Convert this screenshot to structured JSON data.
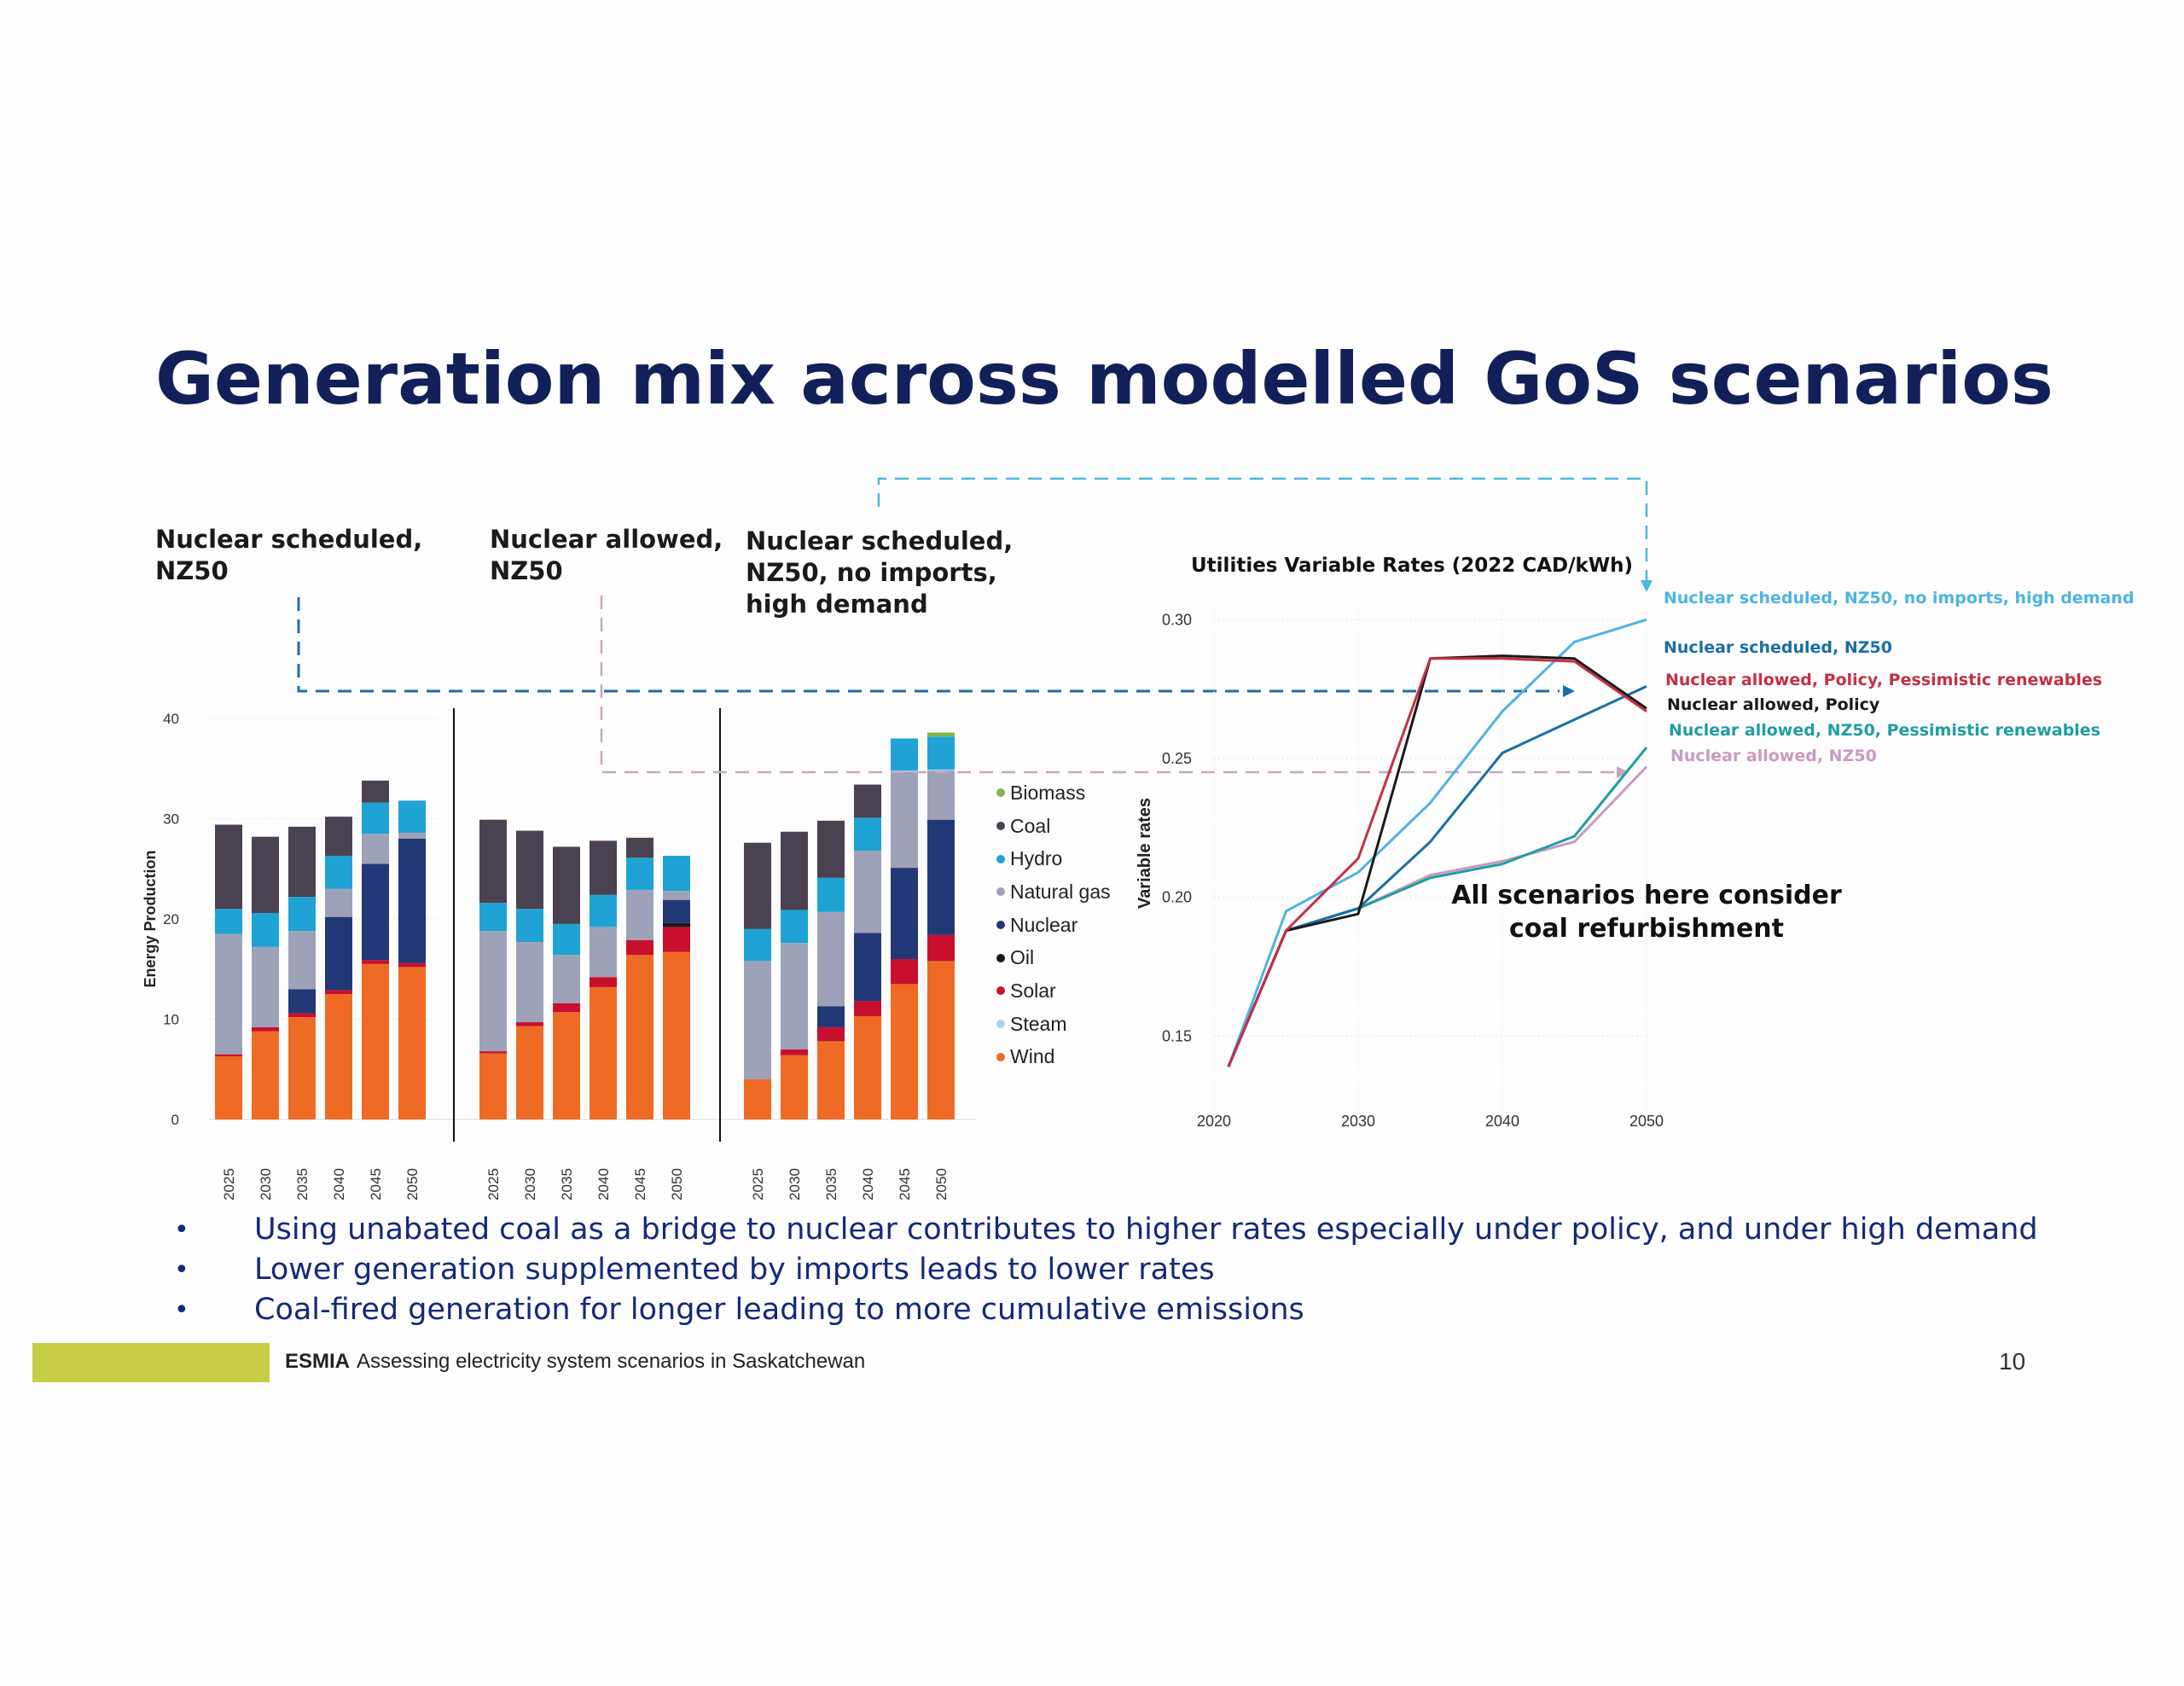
{
  "title": "Generation mix across modelled GoS scenarios",
  "scenario_labels": [
    {
      "text": "Nuclear scheduled,\nNZ50",
      "color": "#1b6f98"
    },
    {
      "text": "Nuclear allowed,\nNZ50",
      "color": "#b386a6"
    },
    {
      "text": "Nuclear scheduled,\nNZ50, no imports,\nhigh demand",
      "color": "#5ab9dd"
    }
  ],
  "legend": [
    {
      "name": "Biomass",
      "color": "#7fb74a"
    },
    {
      "name": "Coal",
      "color": "#4a4250"
    },
    {
      "name": "Hydro",
      "color": "#1fa3d4"
    },
    {
      "name": "Natural gas",
      "color": "#9ea2b8"
    },
    {
      "name": "Nuclear",
      "color": "#223876"
    },
    {
      "name": "Oil",
      "color": "#1a1a1a"
    },
    {
      "name": "Solar",
      "color": "#c8102e"
    },
    {
      "name": "Steam",
      "color": "#a9d3ee"
    },
    {
      "name": "Wind",
      "color": "#ef6b25"
    }
  ],
  "chart_data": [
    {
      "type": "bar",
      "stacked": true,
      "ylabel": "Energy Production",
      "ylim": [
        0,
        40
      ],
      "yticks": [
        "0",
        "10",
        "20",
        "30",
        "40"
      ],
      "panels": [
        {
          "categories": [
            "2025",
            "2030",
            "2035",
            "2040",
            "2045",
            "2050"
          ],
          "series": [
            {
              "name": "Wind",
              "values": [
                6.3,
                8.8,
                10.2,
                12.5,
                15.5,
                15.2
              ]
            },
            {
              "name": "Solar",
              "values": [
                0.2,
                0.4,
                0.4,
                0.4,
                0.4,
                0.4
              ]
            },
            {
              "name": "Nuclear",
              "values": [
                0,
                0,
                2.4,
                7.3,
                9.6,
                12.4
              ]
            },
            {
              "name": "Natural gas",
              "values": [
                12,
                8,
                5.8,
                2.8,
                3.0,
                0.6
              ]
            },
            {
              "name": "Steam",
              "values": [
                0,
                0,
                0,
                0,
                0,
                0
              ]
            },
            {
              "name": "Hydro",
              "values": [
                2.5,
                3.4,
                3.4,
                3.3,
                3.1,
                3.2
              ]
            },
            {
              "name": "Coal",
              "values": [
                8.4,
                7.6,
                7.0,
                3.9,
                2.2,
                0
              ]
            },
            {
              "name": "Biomass",
              "values": [
                0,
                0,
                0,
                0,
                0,
                0
              ]
            }
          ]
        },
        {
          "categories": [
            "2025",
            "2030",
            "2035",
            "2040",
            "2045",
            "2050"
          ],
          "series": [
            {
              "name": "Wind",
              "values": [
                6.6,
                9.3,
                10.7,
                13.2,
                16.4,
                16.7
              ]
            },
            {
              "name": "Solar",
              "values": [
                0.2,
                0.4,
                0.9,
                1.0,
                1.5,
                2.5
              ]
            },
            {
              "name": "Nuclear",
              "values": [
                0,
                0,
                0,
                0,
                0,
                2.3
              ]
            },
            {
              "name": "Natural gas",
              "values": [
                12,
                8,
                4.8,
                5.0,
                5.0,
                0.9
              ]
            },
            {
              "name": "Steam",
              "values": [
                0,
                0,
                0,
                0,
                0,
                0
              ]
            },
            {
              "name": "Hydro",
              "values": [
                2.8,
                3.3,
                3.1,
                3.2,
                3.2,
                3.5
              ]
            },
            {
              "name": "Coal",
              "values": [
                8.3,
                7.8,
                7.7,
                5.4,
                2.0,
                0
              ]
            },
            {
              "name": "Oil",
              "values": [
                0,
                0,
                0,
                0,
                0,
                0.4
              ]
            }
          ]
        },
        {
          "categories": [
            "2025",
            "2030",
            "2035",
            "2040",
            "2045",
            "2050"
          ],
          "series": [
            {
              "name": "Wind",
              "values": [
                4.0,
                6.4,
                7.8,
                10.3,
                13.5,
                15.8
              ]
            },
            {
              "name": "Solar",
              "values": [
                0,
                0.6,
                1.4,
                1.5,
                2.5,
                2.6
              ]
            },
            {
              "name": "Nuclear",
              "values": [
                0,
                0,
                2.1,
                6.8,
                9.1,
                11.5
              ]
            },
            {
              "name": "Natural gas",
              "values": [
                11.8,
                10.6,
                9.4,
                8.2,
                9.6,
                4.9
              ]
            },
            {
              "name": "Steam",
              "values": [
                0,
                0,
                0,
                0,
                0.1,
                0.1
              ]
            },
            {
              "name": "Hydro",
              "values": [
                3.2,
                3.3,
                3.4,
                3.3,
                3.2,
                3.3
              ]
            },
            {
              "name": "Coal",
              "values": [
                8.6,
                7.8,
                5.7,
                3.3,
                0,
                0
              ]
            },
            {
              "name": "Biomass",
              "values": [
                0,
                0,
                0,
                0,
                0,
                0.4
              ]
            }
          ]
        }
      ]
    },
    {
      "type": "line",
      "title": "Utilities Variable Rates (2022 CAD/kWh)",
      "ylabel": "Variable rates",
      "x": [
        2021,
        2025,
        2030,
        2035,
        2040,
        2045,
        2050
      ],
      "xticks": [
        "2020",
        "2030",
        "2040",
        "2050"
      ],
      "yticks": [
        "0.15",
        "0.20",
        "0.25",
        "0.30"
      ],
      "ylim": [
        0.12,
        0.305
      ],
      "xlim": [
        2020,
        2050
      ],
      "series": [
        {
          "name": "Nuclear scheduled, NZ50, no imports, high demand",
          "color": "#4db4e2",
          "values": [
            0.139,
            0.195,
            0.209,
            0.234,
            0.267,
            0.292,
            0.3
          ]
        },
        {
          "name": "Nuclear scheduled, NZ50",
          "color": "#1a6fa3",
          "values": [
            0.139,
            0.188,
            0.196,
            0.22,
            0.252,
            0.264,
            0.276
          ]
        },
        {
          "name": "Nuclear allowed, Policy, Pessimistic renewables",
          "color": "#c62f45",
          "values": [
            0.139,
            0.188,
            0.214,
            0.286,
            0.286,
            0.285,
            0.267
          ]
        },
        {
          "name": "Nuclear allowed, Policy",
          "color": "#1a1a1a",
          "values": [
            0.139,
            0.188,
            0.194,
            0.286,
            0.287,
            0.286,
            0.268
          ]
        },
        {
          "name": "Nuclear allowed, NZ50, Pessimistic renewables",
          "color": "#1f9ea0",
          "values": [
            0.139,
            0.188,
            0.196,
            0.207,
            0.212,
            0.222,
            0.254
          ]
        },
        {
          "name": "Nuclear allowed, NZ50",
          "color": "#c99ac4",
          "values": [
            0.139,
            0.188,
            0.196,
            0.208,
            0.213,
            0.22,
            0.247
          ]
        }
      ]
    }
  ],
  "note": "All scenarios here consider\ncoal refurbishment",
  "bullets": [
    "Using unabated coal as a bridge to nuclear contributes to higher rates especially under policy, and under high demand",
    "Lower generation supplemented by imports leads to lower rates",
    "Coal-fired generation for longer leading to more cumulative emissions"
  ],
  "bullet_char": "•",
  "footer": {
    "brand": "ESMIA",
    "text": "Assessing electricity system scenarios in Saskatchewan"
  },
  "page_number": "10"
}
